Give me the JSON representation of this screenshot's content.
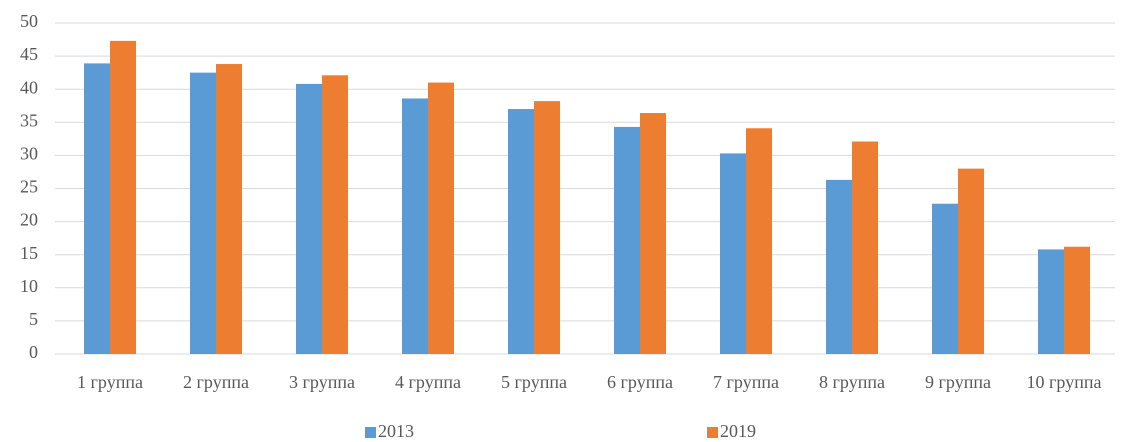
{
  "chart_data": {
    "type": "bar",
    "categories": [
      "1 группа",
      "2 группа",
      "3 группа",
      "4 группа",
      "5 группа",
      "6 группа",
      "7 группа",
      "8 группа",
      "9 группа",
      "10 группа"
    ],
    "series": [
      {
        "name": "2013",
        "color": "#5b9bd5",
        "values": [
          43.9,
          42.5,
          40.8,
          38.6,
          37.0,
          34.3,
          30.3,
          26.3,
          22.7,
          15.8
        ]
      },
      {
        "name": "2019",
        "color": "#ed7d31",
        "values": [
          47.3,
          43.8,
          42.1,
          41.0,
          38.2,
          36.4,
          34.1,
          32.1,
          28.0,
          16.2
        ]
      }
    ],
    "ylim": [
      0,
      50
    ],
    "yticks": [
      0,
      5,
      10,
      15,
      20,
      25,
      30,
      35,
      40,
      45,
      50
    ],
    "grid": true,
    "legend": "bottom"
  }
}
